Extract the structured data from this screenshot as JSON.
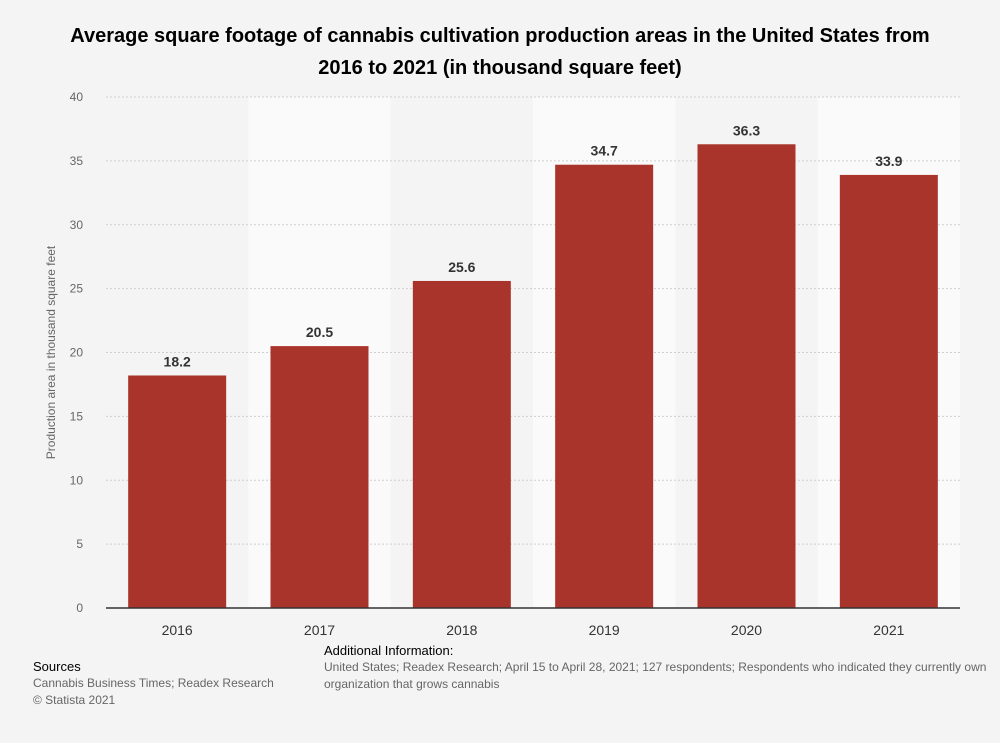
{
  "title": "Average square footage of cannabis cultivation production areas in the United States from 2016 to 2021 (in thousand square feet)",
  "chart_data": {
    "type": "bar",
    "title": "Average square footage of cannabis cultivation production areas in the United States from 2016 to 2021 (in thousand square feet)",
    "categories": [
      "2016",
      "2017",
      "2018",
      "2019",
      "2020",
      "2021"
    ],
    "values": [
      18.2,
      20.5,
      25.6,
      34.7,
      36.3,
      33.9
    ],
    "value_labels": [
      "18.2",
      "20.5",
      "25.6",
      "34.7",
      "36.3",
      "33.9"
    ],
    "xlabel": "",
    "ylabel": "Production area in thousand square feet",
    "ylim": [
      0,
      40
    ],
    "yticks": [
      "0",
      "5",
      "10",
      "15",
      "20",
      "25",
      "30",
      "35",
      "40"
    ],
    "bar_color": "#a9342c",
    "grid": true,
    "legend": "none"
  },
  "sources": {
    "heading": "Sources",
    "line1": "Cannabis Business Times; Readex Research",
    "line2": "© Statista 2021"
  },
  "additional_info": {
    "heading": "Additional Information:",
    "line1": "United States; Readex Research; April 15 to April 28, 2021; 127 respondents; Respondents who indicated they currently own",
    "line2": "organization that grows cannabis"
  }
}
